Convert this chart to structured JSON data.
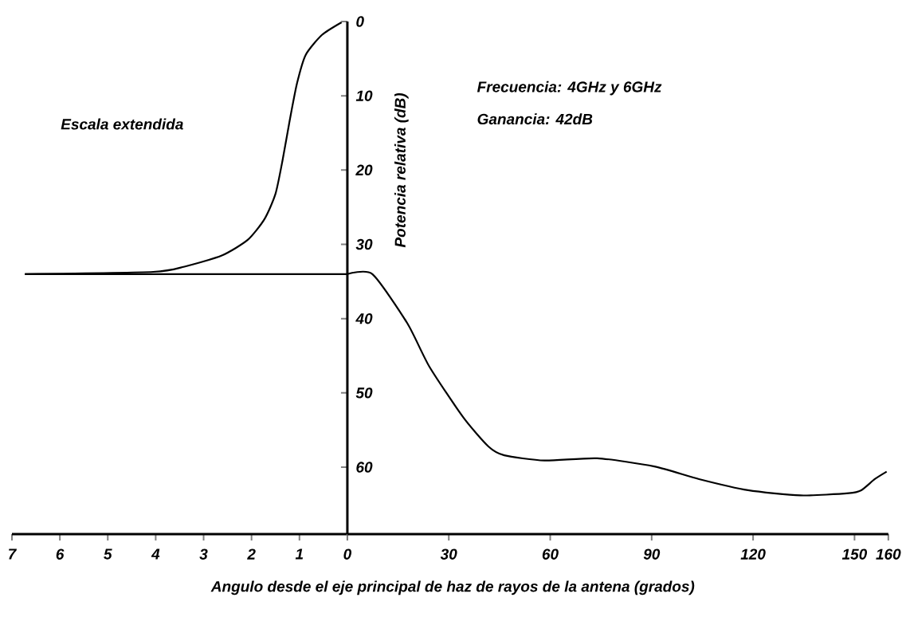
{
  "chart_data": [
    {
      "type": "line",
      "xlim": [
        7,
        0
      ],
      "ylim": [
        69,
        0
      ],
      "xticks": [
        7,
        6,
        5,
        4,
        3,
        2,
        1,
        0
      ],
      "tick_labels": "x",
      "annotations": [
        "Escala extendida"
      ],
      "series": [
        {
          "color": "#000000",
          "x": [
            6.73,
            4.05,
            3.4,
            2.62,
            2.08,
            1.73,
            1.5,
            1.35,
            1.2,
            1.05,
            0.87,
            0.53,
            0.12
          ],
          "values": [
            34.0,
            33.7,
            33.0,
            31.5,
            29.4,
            26.6,
            23.2,
            18.6,
            13.2,
            8.3,
            4.5,
            1.8,
            0.1
          ]
        },
        {
          "color": "#000000",
          "x": [
            6.73,
            0
          ],
          "values": [
            34.0,
            34.0
          ]
        }
      ]
    },
    {
      "type": "line",
      "xlim": [
        0,
        160
      ],
      "ylim": [
        69,
        0
      ],
      "xticks": [
        {
          "value": 0,
          "label": null
        },
        30,
        60,
        90,
        120,
        150,
        160
      ],
      "yticks": [
        0,
        10,
        20,
        30,
        40,
        50,
        60
      ],
      "xlabel": "Angulo desde el eje principal de haz de rayos de la antena (grados)",
      "ylabel": "Potencia relativa (dB)",
      "annotations": [
        "Frecuencia: 4GHz y 6GHz",
        "Ganancia: 42dB"
      ],
      "series": [
        {
          "color": "#000000",
          "x": [
            0,
            7.4,
            17.7,
            24.3,
            34.3,
            41.7,
            46.4,
            58.3,
            73.9,
            90.8,
            104,
            118.5,
            134,
            148.3,
            152,
            156,
            159.5
          ],
          "values": [
            34.0,
            34.0,
            40.6,
            46.5,
            53.3,
            57.2,
            58.4,
            59.1,
            58.8,
            59.9,
            61.6,
            63.1,
            63.8,
            63.5,
            63.1,
            61.6,
            60.6
          ]
        }
      ]
    }
  ]
}
